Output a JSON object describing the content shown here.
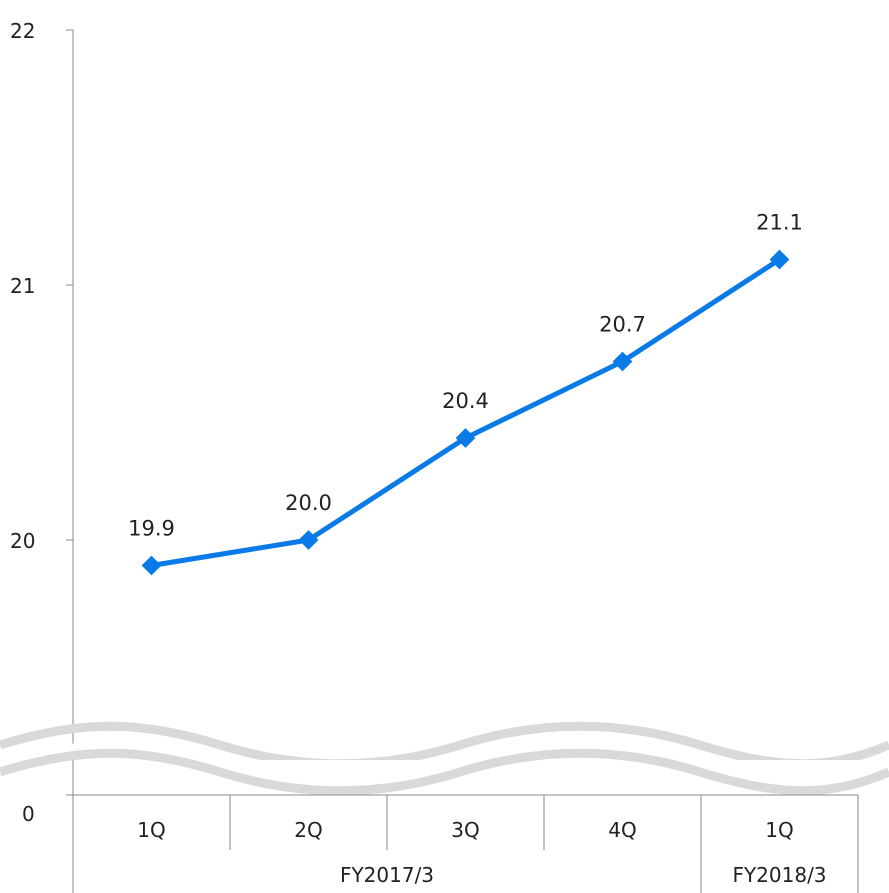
{
  "chart_data": {
    "type": "line",
    "title": "",
    "xlabel": "",
    "ylabel": "",
    "categories": [
      "1Q",
      "2Q",
      "3Q",
      "4Q",
      "1Q"
    ],
    "groups": [
      {
        "label": "FY2017/3",
        "span": 4
      },
      {
        "label": "FY2018/3",
        "span": 1
      }
    ],
    "series": [
      {
        "values": [
          19.9,
          20.0,
          20.4,
          20.7,
          21.1
        ],
        "labels": [
          "19.9",
          "20.0",
          "20.4",
          "20.7",
          "21.1"
        ],
        "color": "#0a7be6"
      }
    ],
    "y_ticks": [
      "0",
      "20",
      "21",
      "22"
    ],
    "ylim": [
      20,
      22
    ],
    "axis_break": true,
    "grid": false,
    "legend": "none"
  }
}
